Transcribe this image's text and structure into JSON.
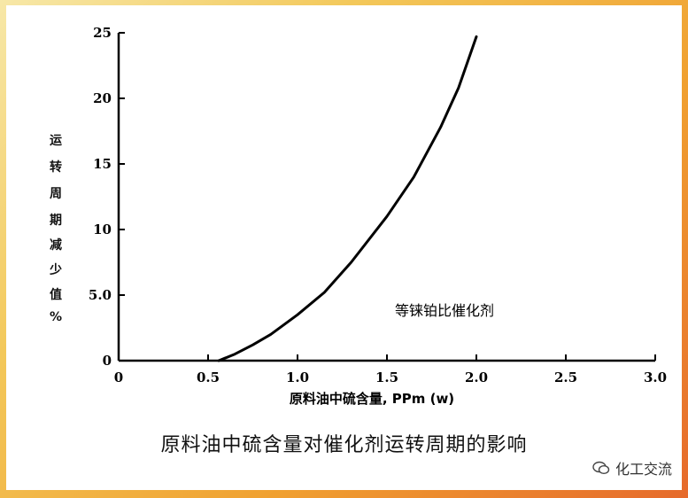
{
  "chart_data": {
    "type": "line",
    "title": "",
    "xlabel": "原料油中硫含量, PPm (w)",
    "ylabel_chars": [
      "运",
      "转",
      "周",
      "期",
      "减",
      "少",
      "值",
      "%"
    ],
    "xlim": [
      0,
      3.0
    ],
    "ylim": [
      0,
      25
    ],
    "x_ticks": [
      "0",
      "0.5",
      "1.0",
      "1.5",
      "2.0",
      "2.5",
      "3.0"
    ],
    "y_ticks": [
      "0",
      "5.0",
      "10",
      "15",
      "20",
      "25"
    ],
    "x_tick_values": [
      0,
      0.5,
      1.0,
      1.5,
      2.0,
      2.5,
      3.0
    ],
    "y_tick_values": [
      0,
      5,
      10,
      15,
      20,
      25
    ],
    "series": [
      {
        "x": [
          0.56,
          0.65,
          0.75,
          0.85,
          1.0,
          1.15,
          1.3,
          1.5,
          1.65,
          1.8,
          1.9,
          2.0
        ],
        "y": [
          0,
          0.5,
          1.2,
          2.0,
          3.5,
          5.2,
          7.5,
          11.0,
          14.0,
          17.8,
          20.8,
          24.7
        ]
      }
    ],
    "annotation": "等铼铂比催化剂",
    "grid": false
  },
  "caption": "原料油中硫含量对催化剂运转周期的影响",
  "watermark": "化工交流",
  "colors": {
    "line": "#000000",
    "frame_start": "#f7e8a8",
    "frame_end": "#e66a2c"
  }
}
